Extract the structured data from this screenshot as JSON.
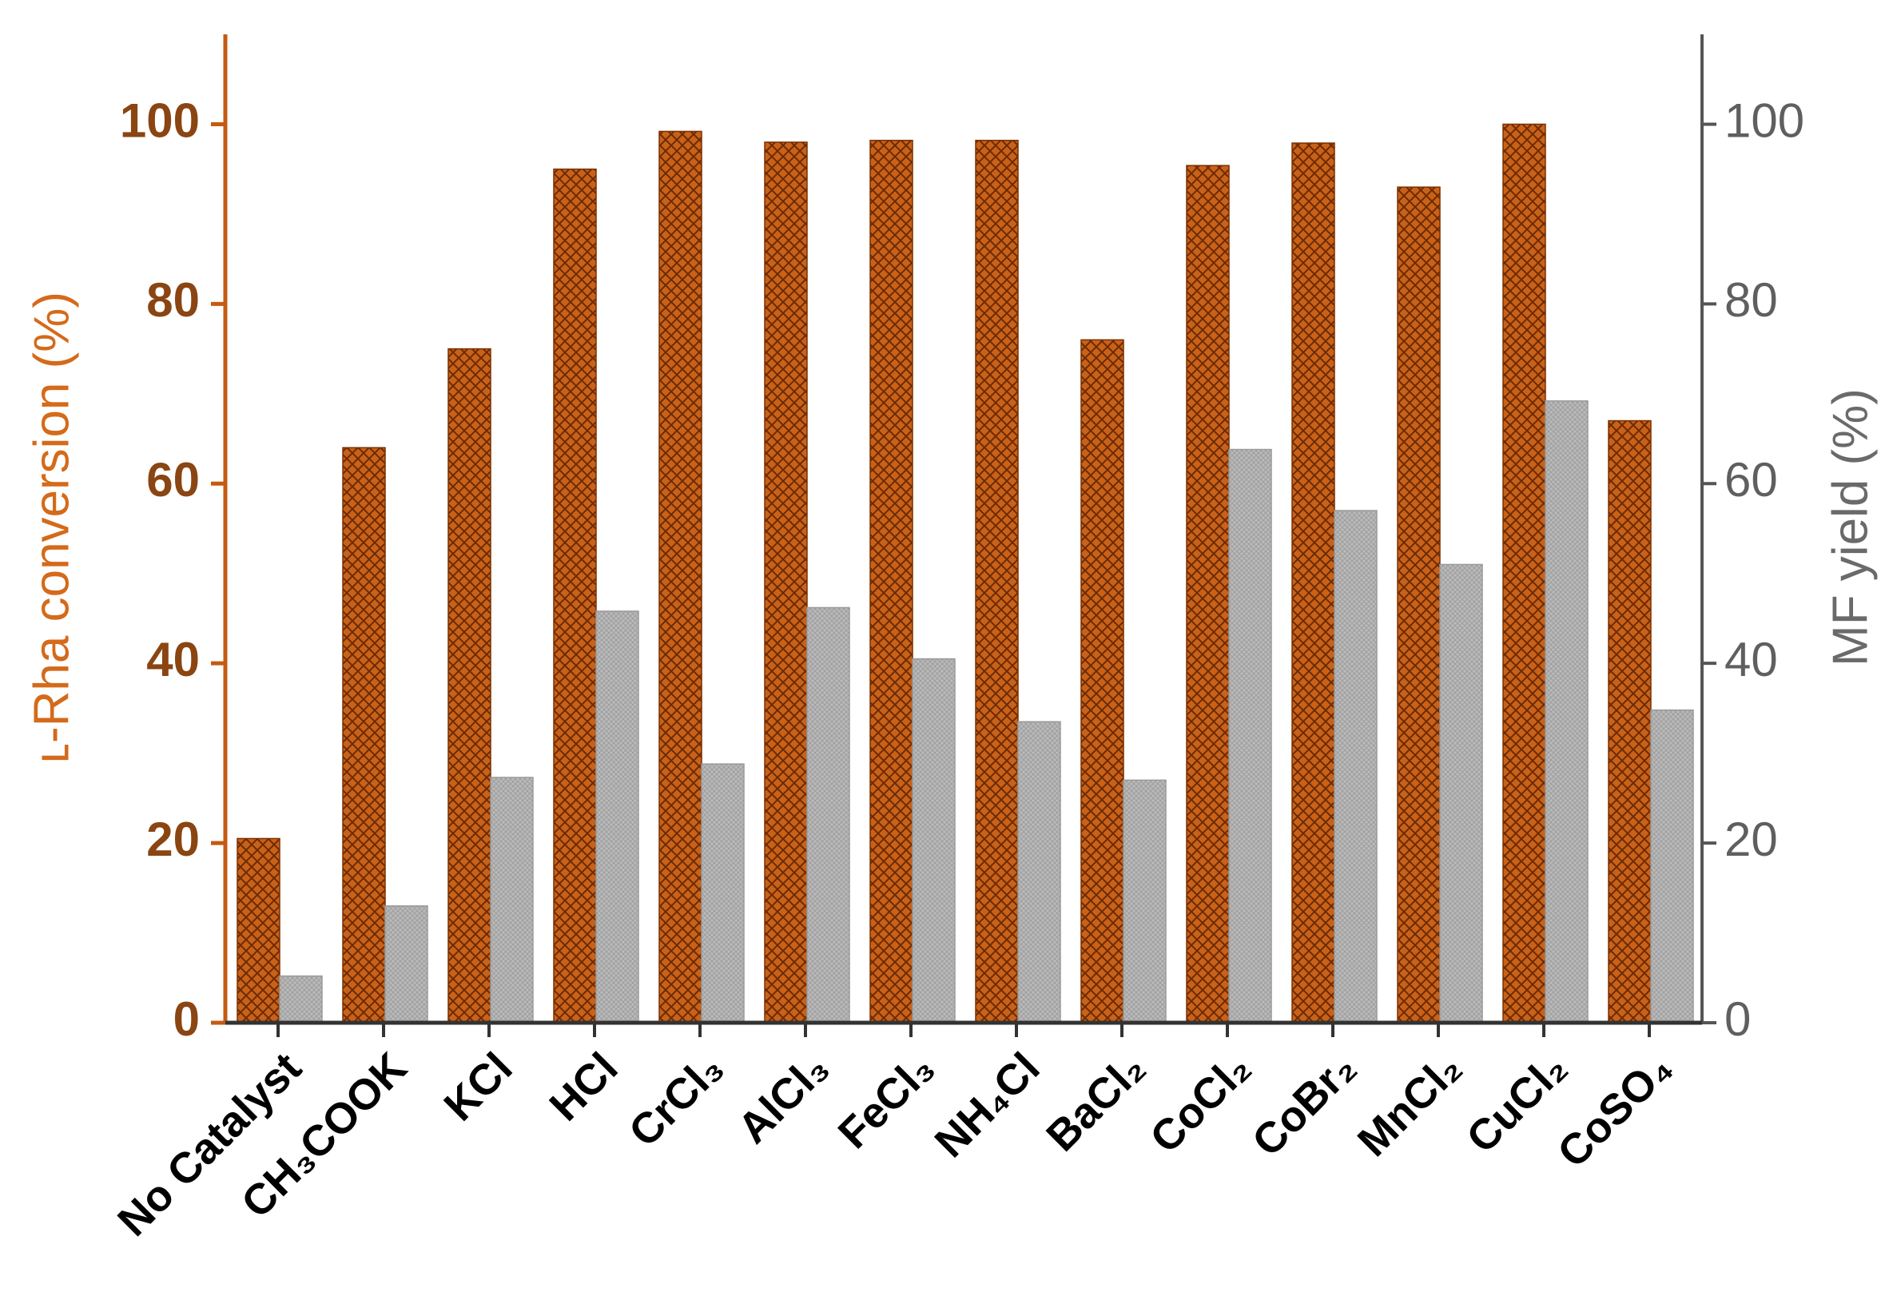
{
  "chart_data": {
    "type": "bar",
    "categories": [
      "No Catalyst",
      "CH₃COOK",
      "KCl",
      "HCl",
      "CrCl₃",
      "AlCl₃",
      "FeCl₃",
      "NH₄Cl",
      "BaCl₂",
      "CoCl₂",
      "CoBr₂",
      "MnCl₂",
      "CuCl₂",
      "CoSO₄"
    ],
    "y_label": "ʟ-Rha conversion (%)",
    "y2_label": "MF yield (%)",
    "series": [
      {
        "name": "ʟ-Rha conversion",
        "color": "#c8621a",
        "values": [
          20.5,
          64,
          75,
          95,
          99.2,
          98,
          98.2,
          98.2,
          76,
          95.4,
          97.9,
          93,
          100,
          67
        ]
      },
      {
        "name": "MF yield",
        "color": "#b9b9b9",
        "axis": "y2",
        "values": [
          5.2,
          13,
          27.3,
          45.8,
          28.8,
          46.2,
          40.5,
          33.5,
          27,
          63.8,
          57,
          51,
          69.2,
          34.8
        ]
      }
    ],
    "ylim": [
      0,
      110
    ],
    "yticks": [
      0,
      20,
      40,
      60,
      80,
      100
    ],
    "y2lim": [
      0,
      110
    ],
    "y2ticks": [
      0,
      20,
      40,
      60,
      80,
      100
    ],
    "legend": false
  }
}
